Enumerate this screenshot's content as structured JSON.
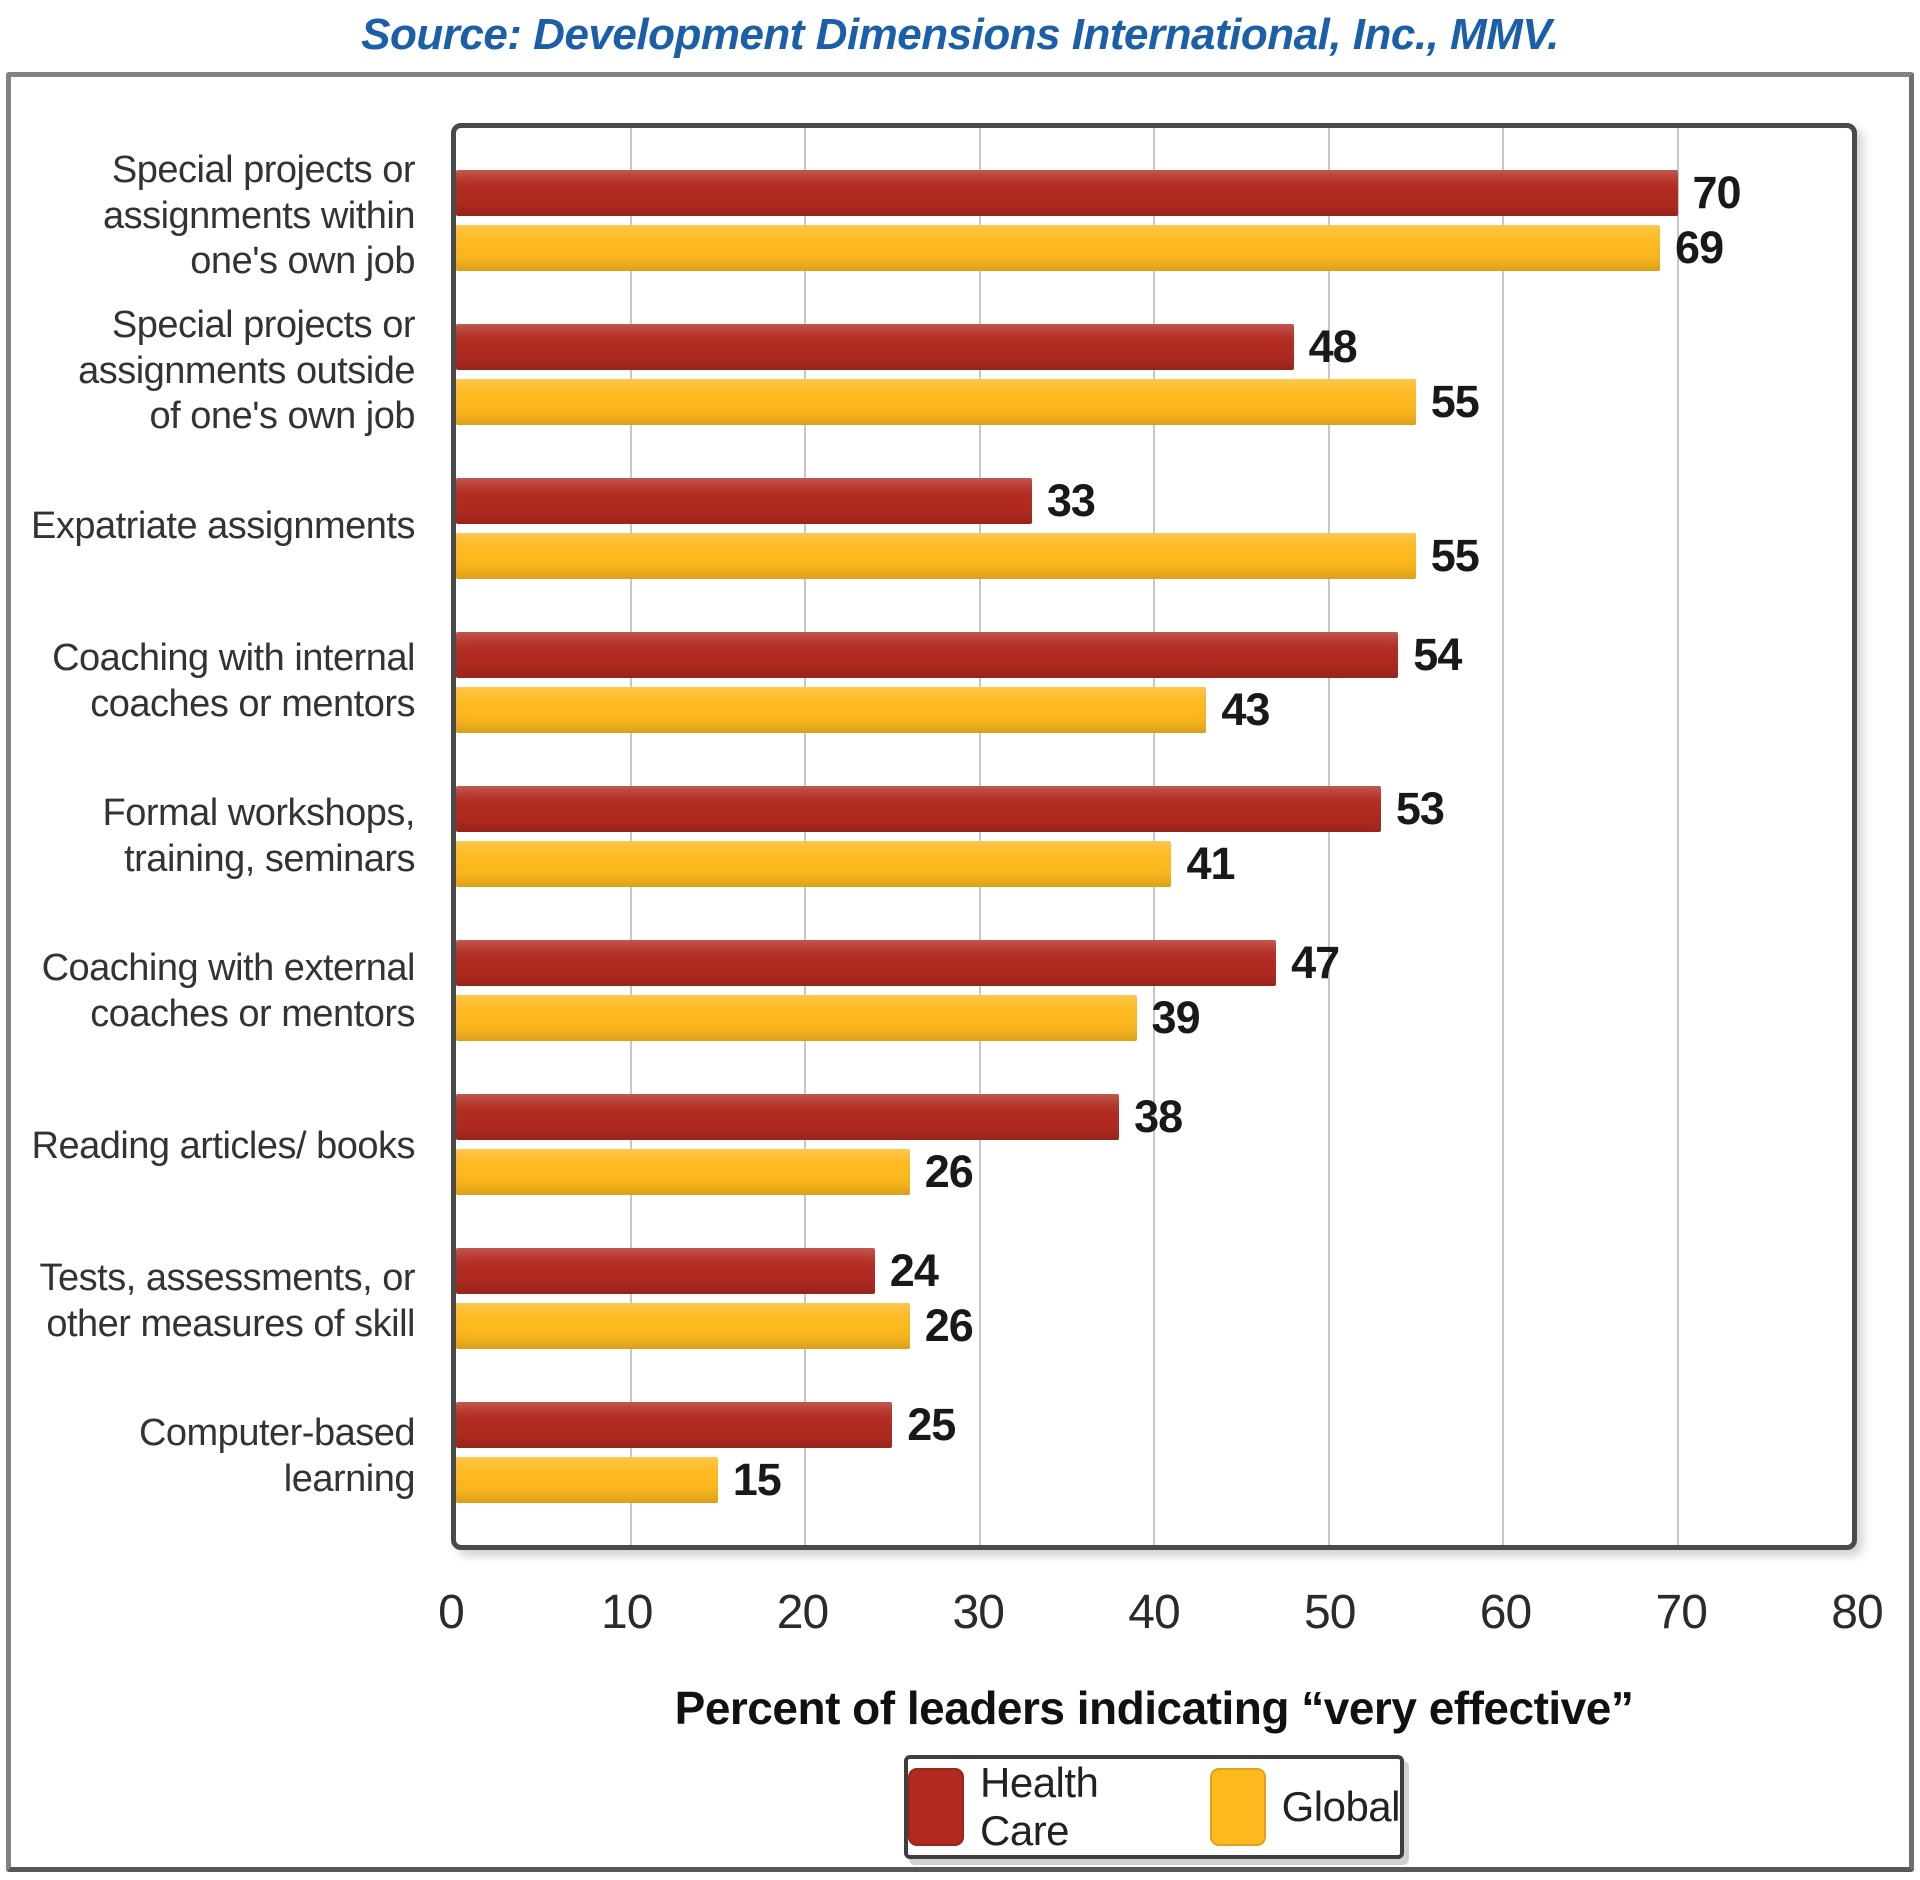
{
  "chart_data": {
    "type": "bar",
    "orientation": "horizontal",
    "title": "Source: Development Dimensions International, Inc., MMV.",
    "xlabel": "Percent of leaders indicating “very effective”",
    "xlim": [
      0,
      80
    ],
    "xticks": [
      0,
      10,
      20,
      30,
      40,
      50,
      60,
      70,
      80
    ],
    "gridlines": [
      10,
      20,
      30,
      40,
      50,
      60,
      70
    ],
    "grid": "vertical",
    "legend_position": "bottom",
    "categories": [
      "Special projects or\nassignments within\none's own job",
      "Special projects or\nassignments outside\nof one's own job",
      "Expatriate assignments",
      "Coaching with internal\ncoaches or mentors",
      "Formal workshops,\ntraining, seminars",
      "Coaching with external\ncoaches or mentors",
      "Reading articles/ books",
      "Tests, assessments, or\nother measures of skill",
      "Computer-based learning"
    ],
    "series": [
      {
        "name": "Health Care",
        "color": "#b12a20",
        "values": [
          70,
          48,
          33,
          54,
          53,
          47,
          38,
          24,
          25
        ]
      },
      {
        "name": "Global",
        "color": "#fdb91e",
        "values": [
          69,
          55,
          55,
          43,
          41,
          39,
          26,
          26,
          15
        ]
      }
    ]
  },
  "colors": {
    "health_care_red": "#b12a20",
    "global_yellow": "#fdb91e",
    "title_blue": "#1a5fa8",
    "gridline_gray": "#c7c7ca",
    "plot_border_gray": "#4a4a4a"
  }
}
